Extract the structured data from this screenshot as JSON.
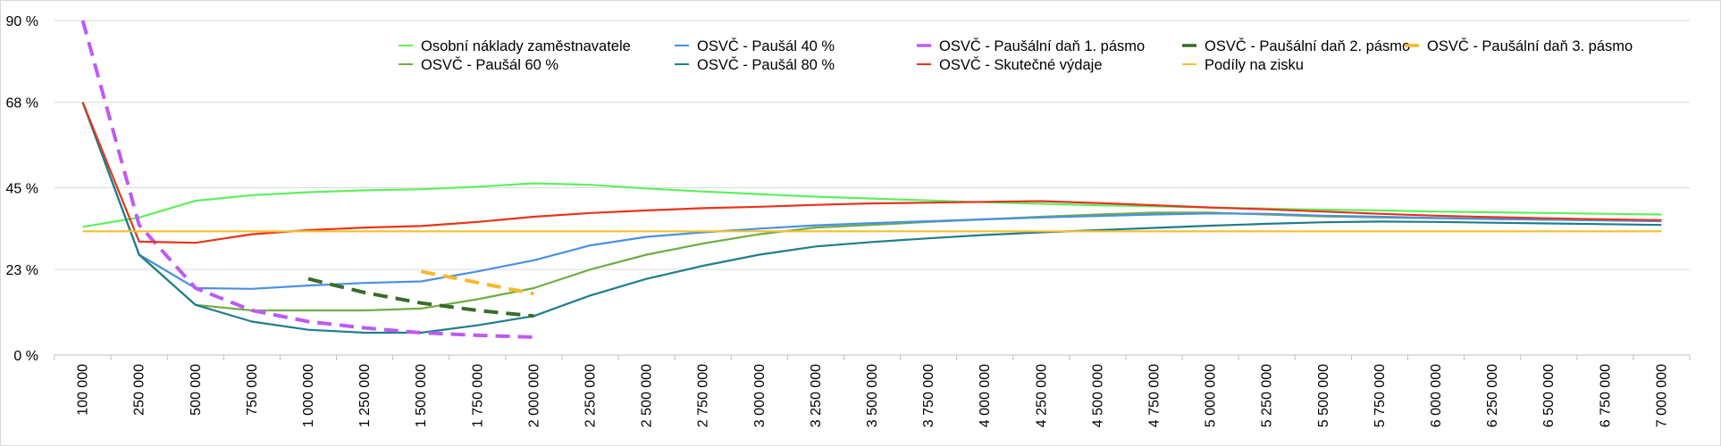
{
  "chart_data": {
    "type": "line",
    "title": "",
    "xlabel": "",
    "ylabel": "",
    "ylim": [
      0,
      90
    ],
    "y_ticks": [
      0,
      23,
      45,
      68,
      90
    ],
    "y_tick_labels": [
      "0 %",
      "23 %",
      "45 %",
      "68 %",
      "90 %"
    ],
    "categories": [
      "100 000",
      "250 000",
      "500 000",
      "750 000",
      "1 000 000",
      "1 250 000",
      "1 500 000",
      "1 750 000",
      "2 000 000",
      "2 250 000",
      "2 500 000",
      "2 750 000",
      "3 000 000",
      "3 250 000",
      "3 500 000",
      "3 750 000",
      "4 000 000",
      "4 250 000",
      "4 500 000",
      "4 750 000",
      "5 000 000",
      "5 250 000",
      "5 500 000",
      "5 750 000",
      "6 000 000",
      "6 250 000",
      "6 500 000",
      "6 750 000",
      "7 000 000"
    ],
    "grid": true,
    "legend_position": "top-right",
    "series": [
      {
        "name": "Osobní náklady zaměstnavatele",
        "color": "#5ef05e",
        "dashed": false,
        "values": [
          34.5,
          37,
          41.5,
          43,
          43.8,
          44.3,
          44.6,
          45.3,
          46.2,
          45.8,
          44.8,
          44,
          43.3,
          42.6,
          42.1,
          41.6,
          41.1,
          40.7,
          40.3,
          40,
          39.7,
          39.4,
          39.1,
          38.9,
          38.6,
          38.4,
          38.2,
          38,
          37.8
        ]
      },
      {
        "name": "OSVČ - Paušál 60 %",
        "color": "#70ad47",
        "dashed": false,
        "values": [
          68,
          27,
          13.5,
          12,
          12,
          12,
          12.5,
          15,
          18,
          23,
          27,
          30,
          32.5,
          34.3,
          35,
          35.8,
          36.5,
          37.2,
          37.8,
          38.3,
          38.3,
          37.8,
          37.3,
          37,
          36.8,
          36.6,
          36.4,
          36.3,
          36.2
        ]
      },
      {
        "name": "OSVČ - Paušál 40 %",
        "color": "#4a90e2",
        "dashed": false,
        "values": [
          68,
          27,
          18,
          17.8,
          18.7,
          19.4,
          19.8,
          22.5,
          25.5,
          29.5,
          31.8,
          33,
          34,
          34.9,
          35.5,
          36,
          36.5,
          37,
          37.4,
          37.8,
          38.1,
          38,
          37.5,
          37.2,
          36.9,
          36.6,
          36.4,
          36.2,
          36
        ]
      },
      {
        "name": "OSVČ - Paušál 80 %",
        "color": "#1f7e8c",
        "dashed": false,
        "values": [
          68,
          27,
          13.5,
          9,
          6.8,
          6,
          6,
          8,
          10.5,
          16,
          20.5,
          24,
          27,
          29.2,
          30.4,
          31.4,
          32.3,
          33,
          33.6,
          34.2,
          34.8,
          35.3,
          35.7,
          35.9,
          35.8,
          35.6,
          35.4,
          35.2,
          35
        ]
      },
      {
        "name": "OSVČ - Paušální daň 1. pásmo",
        "color": "#bf5af2",
        "dashed": true,
        "values": [
          90,
          35,
          18,
          12,
          9,
          7.3,
          6,
          5.3,
          4.8,
          null,
          null,
          null,
          null,
          null,
          null,
          null,
          null,
          null,
          null,
          null,
          null,
          null,
          null,
          null,
          null,
          null,
          null,
          null,
          null
        ]
      },
      {
        "name": "OSVČ - Skutečné výdaje",
        "color": "#e8341c",
        "dashed": false,
        "values": [
          68,
          30.5,
          30.2,
          32.5,
          33.6,
          34.3,
          34.7,
          35.8,
          37.2,
          38.2,
          38.9,
          39.5,
          39.9,
          40.4,
          40.8,
          41,
          41.2,
          41.4,
          40.9,
          40.3,
          39.7,
          39.2,
          38.6,
          38,
          37.5,
          37.1,
          36.8,
          36.5,
          36.3
        ]
      },
      {
        "name": "OSVČ - Paušální daň 2. pásmo",
        "color": "#3a6b2a",
        "dashed": true,
        "values": [
          null,
          null,
          null,
          null,
          20.5,
          16.8,
          14,
          12,
          10.5,
          null,
          null,
          null,
          null,
          null,
          null,
          null,
          null,
          null,
          null,
          null,
          null,
          null,
          null,
          null,
          null,
          null,
          null,
          null,
          null
        ]
      },
      {
        "name": "Podíly na zisku",
        "color": "#f2c12e",
        "dashed": false,
        "values": [
          33.3,
          33.3,
          33.3,
          33.3,
          33.3,
          33.3,
          33.3,
          33.3,
          33.3,
          33.3,
          33.3,
          33.3,
          33.3,
          33.3,
          33.3,
          33.3,
          33.3,
          33.3,
          33.3,
          33.3,
          33.3,
          33.3,
          33.3,
          33.3,
          33.3,
          33.3,
          33.3,
          33.3,
          33.3
        ]
      },
      {
        "name": "OSVČ - Paušální daň 3. pásmo",
        "color": "#f5b92e",
        "dashed": true,
        "values": [
          null,
          null,
          null,
          null,
          null,
          null,
          22.5,
          19.5,
          16.5,
          null,
          null,
          null,
          null,
          null,
          null,
          null,
          null,
          null,
          null,
          null,
          null,
          null,
          null,
          null,
          null,
          null,
          null,
          null,
          null
        ]
      }
    ]
  }
}
